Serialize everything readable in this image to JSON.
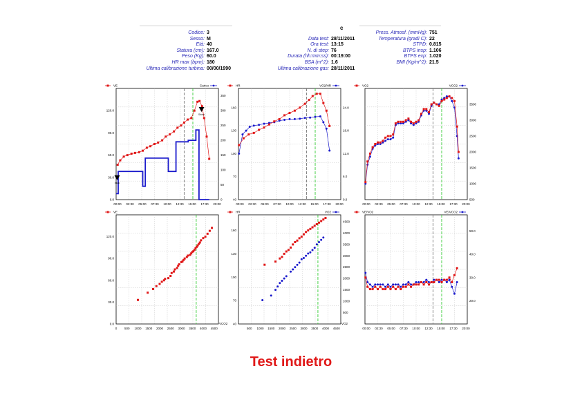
{
  "header": {
    "top_mark": "c",
    "col1": [
      {
        "label": "Codice:",
        "value": "3"
      },
      {
        "label": "Sesso:",
        "value": "M"
      },
      {
        "label": "Età:",
        "value": "40"
      },
      {
        "label": "Statura (cm):",
        "value": "167.0"
      },
      {
        "label": "Peso (Kg):",
        "value": "60.0"
      },
      {
        "label": "HR max (bpm):",
        "value": "180"
      },
      {
        "label": "Ultima calibrazione turbina:",
        "value": "00/00/1990"
      }
    ],
    "col2": [
      {
        "label": "",
        "value": ""
      },
      {
        "label": "Data test:",
        "value": "28/11/2011"
      },
      {
        "label": "Ora test:",
        "value": "13:15"
      },
      {
        "label": "N. di step:",
        "value": "76"
      },
      {
        "label": "Durata (hh:mm:ss):",
        "value": "00:19:00"
      },
      {
        "label": "BSA (m^2):",
        "value": "1.6"
      },
      {
        "label": "Ultima calibrazione gas:",
        "value": "28/11/2011"
      }
    ],
    "col3": [
      {
        "label": "Press. Atmosf. (mmHg):",
        "value": "751"
      },
      {
        "label": "Temperatura (gradi C):",
        "value": "22"
      },
      {
        "label": "STPD:",
        "value": "0.815"
      },
      {
        "label": "BTPS insp:",
        "value": "1.106"
      },
      {
        "label": "BTPS exp:",
        "value": "1.020"
      },
      {
        "label": "BMI (Kg/m^2):",
        "value": "21.5"
      }
    ]
  },
  "caption": "Test indietro",
  "colors": {
    "red": "#e01818",
    "blue": "#1a1acc",
    "green": "#33cc33",
    "grey_line": "#777777",
    "label_blue": "#2a2ab8"
  },
  "chart_data": [
    {
      "type": "line",
      "left_series": "VE",
      "right_series": "Carico",
      "x_ticks": [
        "00:00",
        "02:30",
        "05:00",
        "07:30",
        "10:00",
        "12:30",
        "15:00",
        "17:30",
        "20:00"
      ],
      "x_range": [
        0,
        20
      ],
      "y_left_ticks": [
        "0.0",
        "30.0",
        "60.0",
        "90.0",
        "120.0"
      ],
      "y_left_range": [
        0,
        150
      ],
      "y_right_ticks": [
        "0",
        "50",
        "100",
        "150",
        "200",
        "250",
        "300",
        "350"
      ],
      "y_right_range": [
        0,
        375
      ],
      "vlines": [
        {
          "x": 13.3,
          "color": "grey"
        },
        {
          "x": 15.0,
          "color": "green"
        }
      ],
      "markers": [
        {
          "x": 0.2,
          "label": "Inizio"
        },
        {
          "x": 16.7,
          "label": "Sforzo"
        }
      ],
      "red": {
        "x": [
          0.3,
          0.8,
          1.5,
          2.2,
          3,
          3.7,
          4.5,
          5.2,
          6,
          6.7,
          7.5,
          8.2,
          9,
          9.7,
          10.5,
          11.3,
          12,
          12.7,
          13.3,
          14,
          14.7,
          15.3,
          15.9,
          16.3,
          16.8,
          17.2,
          17.7,
          18.2
        ],
        "y": [
          47,
          53,
          58,
          60,
          62,
          63,
          64,
          66,
          70,
          72,
          75,
          77,
          80,
          85,
          88,
          92,
          97,
          100,
          104,
          108,
          110,
          120,
          132,
          133,
          126,
          110,
          85,
          55
        ]
      },
      "blue": {
        "x": [
          0,
          0.4,
          0.4,
          5.2,
          5.2,
          5.7,
          5.7,
          10.2,
          10.2,
          11.7,
          11.7,
          14.1,
          14.1,
          15.6,
          15.6,
          16.2,
          16.2,
          18.2
        ],
        "y": [
          20,
          20,
          95,
          95,
          45,
          45,
          140,
          140,
          95,
          95,
          195,
          195,
          200,
          200,
          235,
          235,
          0,
          0
        ]
      }
    },
    {
      "type": "line",
      "left_series": "HR",
      "right_series": "VO2/HR",
      "x_ticks": [
        "00:00",
        "02:30",
        "05:00",
        "07:30",
        "10:00",
        "12:30",
        "15:00",
        "17:30",
        "20:00"
      ],
      "x_range": [
        0,
        20
      ],
      "y_left_ticks": [
        "40",
        "70",
        "100",
        "130",
        "160"
      ],
      "y_left_range": [
        40,
        185
      ],
      "y_right_ticks": [
        "0.0",
        "6.0",
        "12.0",
        "18.0",
        "24.0"
      ],
      "y_right_range": [
        0,
        29
      ],
      "vlines": [
        {
          "x": 13.3,
          "color": "grey"
        },
        {
          "x": 15.0,
          "color": "green"
        }
      ],
      "red": {
        "x": [
          0.1,
          1,
          2,
          3,
          4,
          5,
          6,
          7,
          8,
          9,
          10,
          11,
          12,
          13,
          13.8,
          14.5,
          15.3,
          16,
          16.6,
          17.2,
          17.8
        ],
        "y": [
          111,
          120,
          125,
          127,
          131,
          134,
          138,
          142,
          145,
          150,
          153,
          156,
          160,
          165,
          170,
          175,
          178,
          178,
          166,
          156,
          136
        ]
      },
      "blue": {
        "x": [
          0.1,
          0.8,
          1.5,
          2.2,
          3,
          4,
          5,
          6,
          7,
          8,
          9,
          10,
          11,
          12,
          13,
          14,
          15,
          16,
          16.6,
          17.2,
          17.8
        ],
        "y": [
          12,
          17,
          18,
          19,
          19.3,
          19.5,
          19.8,
          20,
          20.2,
          20.6,
          20.8,
          21,
          21,
          21.1,
          21.3,
          21.4,
          21.6,
          21.7,
          20.2,
          18.5,
          12.8
        ]
      }
    },
    {
      "type": "line",
      "left_series": "VO2",
      "right_series": "VCO2",
      "x_ticks": [
        "00:00",
        "02:30",
        "05:00",
        "07:30",
        "10:00",
        "12:30",
        "15:00",
        "17:30",
        "20:00"
      ],
      "x_range": [
        0,
        20
      ],
      "y_left_ticks": [],
      "y_left_range": [
        500,
        4000
      ],
      "y_right_ticks": [
        "500",
        "1000",
        "1500",
        "2000",
        "2500",
        "3000",
        "3500"
      ],
      "y_right_range": [
        500,
        4000
      ],
      "vlines": [
        {
          "x": 13.3,
          "color": "grey"
        },
        {
          "x": 15.0,
          "color": "green"
        }
      ],
      "red": {
        "x": [
          0.1,
          0.5,
          1,
          1.5,
          2,
          2.5,
          3,
          3.5,
          4,
          4.5,
          5,
          5.5,
          6,
          6.5,
          7,
          7.5,
          8,
          8.5,
          9,
          9.5,
          10,
          10.5,
          11,
          11.5,
          12,
          12.5,
          13,
          13.5,
          14,
          14.5,
          15,
          15.5,
          16,
          16.5,
          17,
          17.5,
          18,
          18.3
        ],
        "y": [
          1050,
          1700,
          1950,
          2150,
          2250,
          2300,
          2300,
          2350,
          2450,
          2500,
          2500,
          2550,
          2900,
          2950,
          2950,
          2950,
          3000,
          3050,
          2950,
          2900,
          2950,
          3000,
          3200,
          3350,
          3350,
          3250,
          3500,
          3550,
          3500,
          3450,
          3600,
          3650,
          3700,
          3750,
          3700,
          3600,
          2800,
          2000
        ]
      },
      "blue": {
        "x": [
          0.1,
          0.5,
          1,
          1.5,
          2,
          2.5,
          3,
          3.5,
          4,
          4.5,
          5,
          5.5,
          6,
          6.5,
          7,
          7.5,
          8,
          8.5,
          9,
          9.5,
          10,
          10.5,
          11,
          11.5,
          12,
          12.5,
          13,
          13.5,
          14,
          14.5,
          15,
          15.5,
          16,
          16.5,
          17,
          17.5,
          18,
          18.3
        ],
        "y": [
          1000,
          1600,
          1850,
          2100,
          2200,
          2250,
          2250,
          2300,
          2350,
          2400,
          2400,
          2450,
          2850,
          2900,
          2900,
          2900,
          2950,
          3000,
          2900,
          2850,
          2900,
          2950,
          3150,
          3300,
          3300,
          3200,
          3450,
          3550,
          3500,
          3500,
          3650,
          3700,
          3750,
          3750,
          3600,
          3400,
          2500,
          1800
        ]
      }
    },
    {
      "type": "scatter",
      "left_series": "VE",
      "right_series": "",
      "x_label": "VCO2",
      "x_ticks": [
        "0",
        "500",
        "1000",
        "1500",
        "2000",
        "2500",
        "3000",
        "3500",
        "4000",
        "4500"
      ],
      "x_range": [
        0,
        4700
      ],
      "y_left_ticks": [
        "0.0",
        "30.0",
        "60.0",
        "90.0",
        "120.0"
      ],
      "y_left_range": [
        0,
        150
      ],
      "y_right_ticks": [],
      "y_right_range": [
        0,
        150
      ],
      "vlines": [
        {
          "x": 3680,
          "color": "green"
        }
      ],
      "red": {
        "x": [
          1000,
          1450,
          1700,
          1850,
          2000,
          2100,
          2200,
          2250,
          2400,
          2500,
          2550,
          2650,
          2700,
          2800,
          2850,
          2900,
          3000,
          3050,
          3100,
          3150,
          3250,
          3300,
          3400,
          3450,
          3500,
          3550,
          3600,
          3650,
          3700,
          3750,
          3800,
          3850,
          3900,
          4000,
          4100,
          4200,
          4300,
          4400
        ],
        "y": [
          33,
          43,
          48,
          52,
          55,
          58,
          60,
          62,
          63,
          66,
          70,
          72,
          75,
          77,
          80,
          82,
          85,
          86,
          88,
          90,
          92,
          94,
          95,
          97,
          99,
          100,
          102,
          104,
          106,
          108,
          110,
          112,
          115,
          118,
          120,
          124,
          128,
          132
        ]
      }
    },
    {
      "type": "scatter",
      "left_series": "HR",
      "right_series": "VO2",
      "x_label": "VO2",
      "x_ticks": [
        "500",
        "1000",
        "1500",
        "2000",
        "2500",
        "3000",
        "3500",
        "4000",
        "4500"
      ],
      "x_range": [
        0,
        4700
      ],
      "y_left_ticks": [
        "40",
        "70",
        "100",
        "130",
        "160"
      ],
      "y_left_range": [
        40,
        180
      ],
      "y_right_ticks": [
        "500",
        "1000",
        "1500",
        "2000",
        "2500",
        "3000",
        "3500",
        "4000",
        "4500"
      ],
      "y_right_range": [
        0,
        4800
      ],
      "vlines": [
        {
          "x": 3650,
          "color": "green"
        }
      ],
      "red": {
        "x": [
          1200,
          1700,
          1900,
          2000,
          2100,
          2200,
          2300,
          2400,
          2500,
          2600,
          2700,
          2800,
          2900,
          3000,
          3100,
          3200,
          3300,
          3400,
          3500,
          3600,
          3700,
          3800,
          3900,
          4000
        ],
        "y": [
          116,
          120,
          124,
          126,
          130,
          133,
          135,
          138,
          142,
          145,
          147,
          150,
          152,
          155,
          158,
          160,
          162,
          164,
          166,
          168,
          170,
          172,
          174,
          176
        ]
      },
      "blue": {
        "x": [
          1100,
          1500,
          1700,
          1800,
          1900,
          2000,
          2100,
          2200,
          2400,
          2500,
          2600,
          2700,
          2800,
          2900,
          3000,
          3100,
          3200,
          3300,
          3400,
          3500,
          3600,
          3700,
          3800,
          3900
        ],
        "y": [
          1050,
          1250,
          1500,
          1650,
          1800,
          1900,
          2000,
          2100,
          2300,
          2400,
          2500,
          2600,
          2700,
          2850,
          2900,
          3000,
          3100,
          3150,
          3250,
          3350,
          3500,
          3600,
          3700,
          3800
        ]
      }
    },
    {
      "type": "line",
      "left_series": "VE/VO2",
      "right_series": "VE/VCO2",
      "x_ticks": [
        "00:00",
        "02:30",
        "05:00",
        "07:30",
        "10:00",
        "12:30",
        "15:00",
        "17:30",
        "20:00"
      ],
      "x_range": [
        0,
        20
      ],
      "y_left_ticks": [],
      "y_left_range": [
        10,
        57
      ],
      "y_right_ticks": [
        "20.0",
        "30.0",
        "40.0",
        "50.0"
      ],
      "y_right_range": [
        10,
        57
      ],
      "vlines": [
        {
          "x": 13.3,
          "color": "grey"
        },
        {
          "x": 15.0,
          "color": "green"
        }
      ],
      "red": {
        "x": [
          0.1,
          0.5,
          1,
          1.5,
          2,
          2.5,
          3,
          3.5,
          4,
          4.5,
          5,
          5.5,
          6,
          6.5,
          7,
          7.5,
          8,
          8.5,
          9,
          9.5,
          10,
          10.5,
          11,
          11.5,
          12,
          12.5,
          13,
          13.5,
          14,
          14.5,
          15,
          15.5,
          16,
          16.5,
          17,
          17.5,
          18
        ],
        "y": [
          30,
          26,
          25,
          25,
          26,
          25,
          26,
          25,
          25,
          26,
          25,
          26,
          25,
          26,
          25,
          26,
          26,
          27,
          26,
          27,
          27,
          27,
          28,
          27,
          28,
          27,
          28,
          28,
          29,
          29,
          28,
          29,
          29,
          30,
          28,
          31,
          34
        ]
      },
      "blue": {
        "x": [
          0.1,
          0.5,
          1,
          1.5,
          2,
          2.5,
          3,
          3.5,
          4,
          4.5,
          5,
          5.5,
          6,
          6.5,
          7,
          7.5,
          8,
          8.5,
          9,
          9.5,
          10,
          10.5,
          11,
          11.5,
          12,
          12.5,
          13,
          13.5,
          14,
          14.5,
          15,
          15.5,
          16,
          16.5,
          17,
          17.5,
          18
        ],
        "y": [
          32,
          28,
          27,
          26,
          27,
          27,
          27,
          27,
          26,
          27,
          26,
          27,
          27,
          27,
          26,
          27,
          27,
          28,
          27,
          27,
          28,
          28,
          28,
          28,
          29,
          28,
          28,
          29,
          29,
          28,
          29,
          29,
          28,
          29,
          26,
          23,
          28
        ]
      }
    }
  ]
}
